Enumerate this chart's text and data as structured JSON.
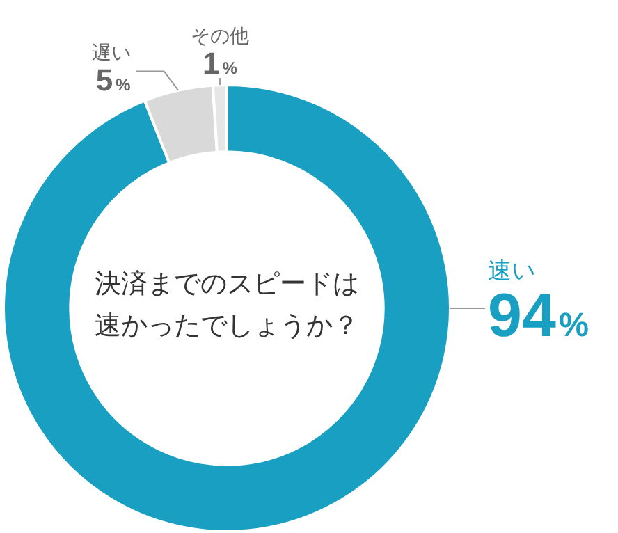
{
  "chart_data": {
    "type": "donut",
    "title": "決済までのスピードは速かったでしょうか？",
    "categories": [
      "速い",
      "遅い",
      "その他"
    ],
    "values": [
      94,
      5,
      1
    ],
    "value_labels": [
      "94%",
      "5%",
      "1%"
    ],
    "colors": [
      "#189fc1",
      "#d9d9d9",
      "#e6e6e6"
    ],
    "legend": false
  }
}
